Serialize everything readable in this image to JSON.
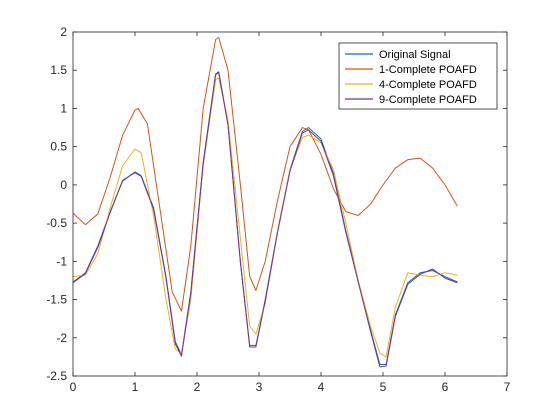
{
  "chart_data": {
    "type": "line",
    "title": "",
    "xlabel": "",
    "ylabel": "",
    "xlim": [
      0,
      7
    ],
    "ylim": [
      -2.5,
      2
    ],
    "xticks": [
      0,
      1,
      2,
      3,
      4,
      5,
      6,
      7
    ],
    "yticks": [
      -2.5,
      -2,
      -1.5,
      -1,
      -0.5,
      0,
      0.5,
      1,
      1.5,
      2
    ],
    "xtick_labels": [
      "0",
      "1",
      "2",
      "3",
      "4",
      "5",
      "6",
      "7"
    ],
    "ytick_labels": [
      "-2.5",
      "-2",
      "-1.5",
      "-1",
      "-0.5",
      "0",
      "0.5",
      "1",
      "1.5",
      "2"
    ],
    "grid": false,
    "legend_position": "top-right",
    "series": [
      {
        "name": "Original Signal",
        "color": "#0072BD",
        "x": [
          0,
          0.2,
          0.4,
          0.6,
          0.8,
          1.0,
          1.1,
          1.3,
          1.5,
          1.65,
          1.75,
          1.9,
          2.1,
          2.3,
          2.35,
          2.5,
          2.7,
          2.85,
          2.95,
          3.1,
          3.3,
          3.5,
          3.7,
          3.8,
          4.0,
          4.2,
          4.4,
          4.6,
          4.8,
          4.95,
          5.05,
          5.2,
          5.4,
          5.6,
          5.8,
          6.0,
          6.2
        ],
        "y": [
          -1.27,
          -1.15,
          -0.8,
          -0.35,
          0.05,
          0.17,
          0.12,
          -0.3,
          -1.2,
          -2.05,
          -2.22,
          -1.4,
          0.3,
          1.45,
          1.48,
          0.8,
          -1.0,
          -2.1,
          -2.1,
          -1.5,
          -0.6,
          0.2,
          0.7,
          0.75,
          0.6,
          0.15,
          -0.6,
          -1.25,
          -1.9,
          -2.35,
          -2.35,
          -1.7,
          -1.28,
          -1.15,
          -1.12,
          -1.2,
          -1.27
        ]
      },
      {
        "name": "1-Complete POAFD",
        "color": "#D95319",
        "x": [
          0,
          0.2,
          0.4,
          0.6,
          0.8,
          1.0,
          1.05,
          1.2,
          1.4,
          1.6,
          1.75,
          1.9,
          2.1,
          2.3,
          2.35,
          2.5,
          2.7,
          2.85,
          2.95,
          3.1,
          3.3,
          3.5,
          3.7,
          3.8,
          4.0,
          4.2,
          4.4,
          4.6,
          4.8,
          5.0,
          5.2,
          5.4,
          5.6,
          5.8,
          6.0,
          6.2
        ],
        "y": [
          -0.37,
          -0.52,
          -0.38,
          0.1,
          0.65,
          0.98,
          1.0,
          0.8,
          -0.3,
          -1.4,
          -1.65,
          -0.8,
          1.0,
          1.9,
          1.93,
          1.5,
          0.0,
          -1.2,
          -1.38,
          -1.0,
          -0.2,
          0.5,
          0.75,
          0.72,
          0.4,
          -0.05,
          -0.35,
          -0.4,
          -0.25,
          0.0,
          0.22,
          0.33,
          0.35,
          0.22,
          0.0,
          -0.28
        ]
      },
      {
        "name": "4-Complete POAFD",
        "color": "#EDB120",
        "x": [
          0,
          0.2,
          0.4,
          0.6,
          0.8,
          1.0,
          1.1,
          1.3,
          1.5,
          1.65,
          1.75,
          1.9,
          2.1,
          2.3,
          2.35,
          2.5,
          2.7,
          2.85,
          2.95,
          3.1,
          3.3,
          3.5,
          3.7,
          3.8,
          4.0,
          4.2,
          4.4,
          4.6,
          4.8,
          4.95,
          5.05,
          5.2,
          5.4,
          5.6,
          5.8,
          6.0,
          6.2
        ],
        "y": [
          -1.2,
          -1.18,
          -0.9,
          -0.3,
          0.25,
          0.47,
          0.42,
          -0.4,
          -1.5,
          -2.15,
          -2.2,
          -1.5,
          0.25,
          1.38,
          1.4,
          0.85,
          -0.7,
          -1.85,
          -1.95,
          -1.55,
          -0.6,
          0.2,
          0.62,
          0.65,
          0.55,
          0.2,
          -0.5,
          -1.25,
          -1.85,
          -2.2,
          -2.25,
          -1.6,
          -1.15,
          -1.18,
          -1.2,
          -1.15,
          -1.18
        ]
      },
      {
        "name": "9-Complete POAFD",
        "color": "#7E2F8E",
        "x": [
          0,
          0.2,
          0.4,
          0.6,
          0.8,
          1.0,
          1.1,
          1.3,
          1.5,
          1.65,
          1.75,
          1.9,
          2.1,
          2.3,
          2.35,
          2.5,
          2.7,
          2.85,
          2.95,
          3.1,
          3.3,
          3.5,
          3.7,
          3.8,
          4.0,
          4.2,
          4.4,
          4.6,
          4.8,
          4.95,
          5.05,
          5.2,
          5.4,
          5.6,
          5.8,
          6.0,
          6.2
        ],
        "y": [
          -1.28,
          -1.16,
          -0.82,
          -0.36,
          0.06,
          0.16,
          0.11,
          -0.32,
          -1.22,
          -2.08,
          -2.24,
          -1.42,
          0.28,
          1.44,
          1.47,
          0.78,
          -1.02,
          -2.12,
          -2.12,
          -1.52,
          -0.62,
          0.18,
          0.68,
          0.72,
          0.57,
          0.12,
          -0.62,
          -1.27,
          -1.92,
          -2.38,
          -2.37,
          -1.72,
          -1.3,
          -1.17,
          -1.1,
          -1.22,
          -1.28
        ]
      }
    ]
  }
}
